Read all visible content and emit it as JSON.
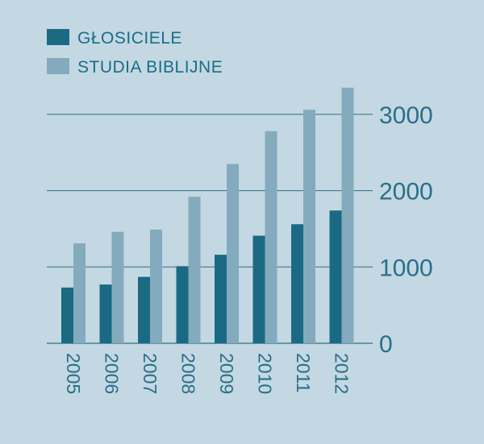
{
  "chart_data": {
    "type": "bar",
    "categories": [
      "2005",
      "2006",
      "2007",
      "2008",
      "2009",
      "2010",
      "2011",
      "2012"
    ],
    "series": [
      {
        "name": "GŁOSICIELE",
        "values": [
          730,
          770,
          870,
          1010,
          1160,
          1410,
          1560,
          1740
        ],
        "color": "#1b6a84"
      },
      {
        "name": "STUDIA BIBLIJNE",
        "values": [
          1310,
          1460,
          1490,
          1920,
          2350,
          2780,
          3060,
          3350
        ],
        "color": "#84abbd"
      }
    ],
    "yticks": [
      "0",
      "1000",
      "2000",
      "3000"
    ],
    "ylim": [
      0,
      3300
    ],
    "grid": true,
    "legend": "top-left",
    "y_axis_position": "right",
    "x_tick_rotation": "vertical",
    "background": "#c3d8e3",
    "gridline_color": "#2f6f86",
    "text_color": "#2a6f88"
  }
}
